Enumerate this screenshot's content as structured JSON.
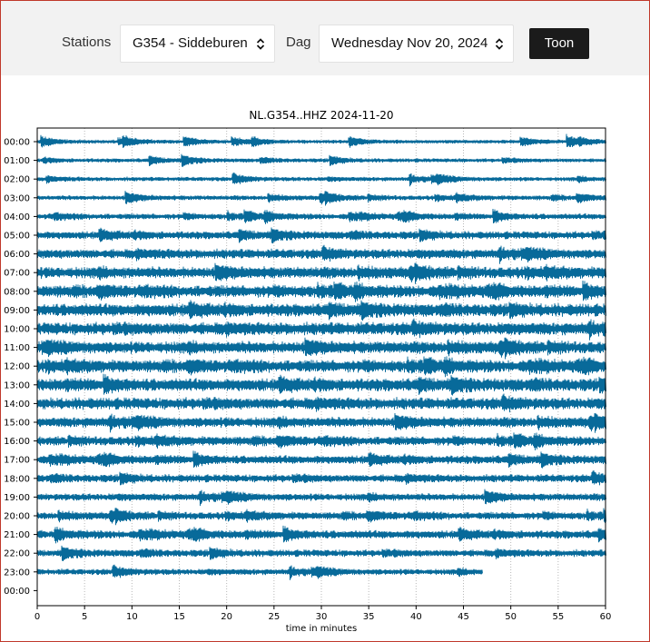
{
  "toolbar": {
    "station_label": "Stations",
    "station_value": "G354 - Siddeburen",
    "day_label": "Dag",
    "day_value": "Wednesday Nov 20, 2024",
    "show_button": "Toon"
  },
  "colors": {
    "trace": "#086a9a",
    "frame_border": "#c0392b",
    "toolbar_bg": "#f2f2f2",
    "button_bg": "#1b1b1b"
  },
  "chart_data": {
    "type": "line",
    "title": "NL.G354..HHZ 2024-11-20",
    "xlabel": "time in minutes",
    "ylabel": "",
    "xlim": [
      0,
      60
    ],
    "x_ticks": [
      0,
      5,
      10,
      15,
      20,
      25,
      30,
      35,
      40,
      45,
      50,
      55,
      60
    ],
    "grid": "vertical dotted",
    "row_labels": [
      "00:00",
      "01:00",
      "02:00",
      "03:00",
      "04:00",
      "05:00",
      "06:00",
      "07:00",
      "08:00",
      "09:00",
      "10:00",
      "11:00",
      "12:00",
      "13:00",
      "14:00",
      "15:00",
      "16:00",
      "17:00",
      "18:00",
      "19:00",
      "20:00",
      "21:00",
      "22:00",
      "23:00",
      "00:00"
    ],
    "rows": [
      {
        "label": "00:00",
        "activity": 0.12,
        "end": 60
      },
      {
        "label": "01:00",
        "activity": 0.14,
        "end": 60
      },
      {
        "label": "02:00",
        "activity": 0.16,
        "end": 60
      },
      {
        "label": "03:00",
        "activity": 0.2,
        "end": 60
      },
      {
        "label": "04:00",
        "activity": 0.28,
        "end": 60
      },
      {
        "label": "05:00",
        "activity": 0.45,
        "end": 60
      },
      {
        "label": "06:00",
        "activity": 0.6,
        "end": 60
      },
      {
        "label": "07:00",
        "activity": 0.75,
        "end": 60
      },
      {
        "label": "08:00",
        "activity": 0.8,
        "end": 60
      },
      {
        "label": "09:00",
        "activity": 0.85,
        "end": 60
      },
      {
        "label": "10:00",
        "activity": 0.85,
        "end": 60
      },
      {
        "label": "11:00",
        "activity": 0.8,
        "end": 60
      },
      {
        "label": "12:00",
        "activity": 0.82,
        "end": 60
      },
      {
        "label": "13:00",
        "activity": 0.85,
        "end": 60
      },
      {
        "label": "14:00",
        "activity": 0.78,
        "end": 60
      },
      {
        "label": "15:00",
        "activity": 0.65,
        "end": 60
      },
      {
        "label": "16:00",
        "activity": 0.55,
        "end": 60
      },
      {
        "label": "17:00",
        "activity": 0.5,
        "end": 60
      },
      {
        "label": "18:00",
        "activity": 0.45,
        "end": 60
      },
      {
        "label": "19:00",
        "activity": 0.4,
        "end": 60
      },
      {
        "label": "20:00",
        "activity": 0.42,
        "end": 60
      },
      {
        "label": "21:00",
        "activity": 0.48,
        "end": 60
      },
      {
        "label": "22:00",
        "activity": 0.4,
        "end": 60
      },
      {
        "label": "23:00",
        "activity": 0.3,
        "end": 47
      },
      {
        "label": "00:00",
        "activity": 0,
        "end": 0
      }
    ]
  }
}
